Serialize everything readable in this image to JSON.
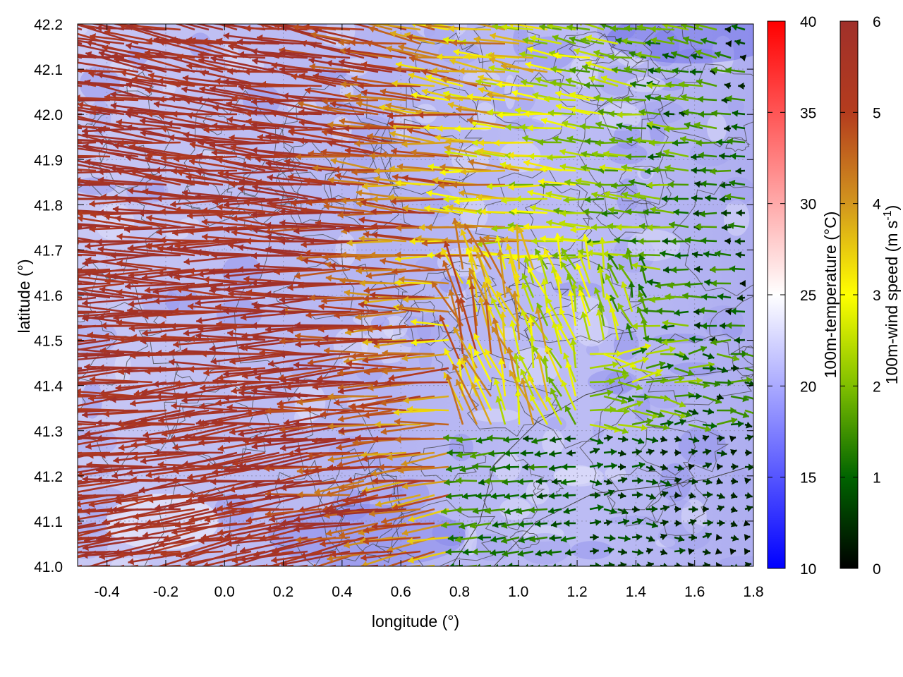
{
  "chart_data": {
    "type": "heatmap",
    "overlays": [
      "vector field (arrows colored by speed)",
      "contour lines (terrain)"
    ],
    "xlabel": "longitude (°)",
    "ylabel": "latitude (°)",
    "xlim": [
      -0.5,
      1.8
    ],
    "ylim": [
      41.0,
      42.2
    ],
    "x_ticks": [
      -0.4,
      -0.2,
      0.0,
      0.2,
      0.4,
      0.6,
      0.8,
      1.0,
      1.2,
      1.4,
      1.6,
      1.8
    ],
    "x_tick_labels": [
      "-0.4",
      "-0.2",
      "0.0",
      "0.2",
      "0.4",
      "0.6",
      "0.8",
      "1.0",
      "1.2",
      "1.4",
      "1.6",
      "1.8"
    ],
    "y_ticks": [
      41.0,
      41.1,
      41.2,
      41.3,
      41.4,
      41.5,
      41.6,
      41.7,
      41.8,
      41.9,
      42.0,
      42.1,
      42.2
    ],
    "y_tick_labels": [
      "41.0",
      "41.1",
      "41.2",
      "41.3",
      "41.4",
      "41.5",
      "41.6",
      "41.7",
      "41.8",
      "41.9",
      "42.0",
      "42.1",
      "42.2"
    ],
    "grid": true,
    "temperature_colorbar": {
      "label": "100m-temperature (°C)",
      "range": [
        10,
        40
      ],
      "ticks": [
        10,
        15,
        20,
        25,
        30,
        35,
        40
      ],
      "tick_labels": [
        "10",
        "15",
        "20",
        "25",
        "30",
        "35",
        "40"
      ],
      "colors": [
        "#0000ff",
        "#ffffff",
        "#ff0000"
      ]
    },
    "wind_colorbar": {
      "label_main": "100m-wind speed (m s",
      "label_sup": "-1",
      "label_end": ")",
      "range": [
        0,
        6
      ],
      "ticks": [
        0,
        1,
        2,
        3,
        4,
        5,
        6
      ],
      "tick_labels": [
        "0",
        "1",
        "2",
        "3",
        "4",
        "5",
        "6"
      ],
      "colors": [
        "#000000",
        "#006400",
        "#7fbf00",
        "#ffff00",
        "#d2961e",
        "#b43c1e",
        "#a0302a"
      ]
    },
    "field_summary": {
      "temperature_range_shown": [
        15,
        24
      ],
      "wind_direction": "from east toward west",
      "strong_wind_region": "western half, speed near 6 m/s",
      "weak_wind_region": "eastern half, speed near 0-2 m/s"
    }
  }
}
